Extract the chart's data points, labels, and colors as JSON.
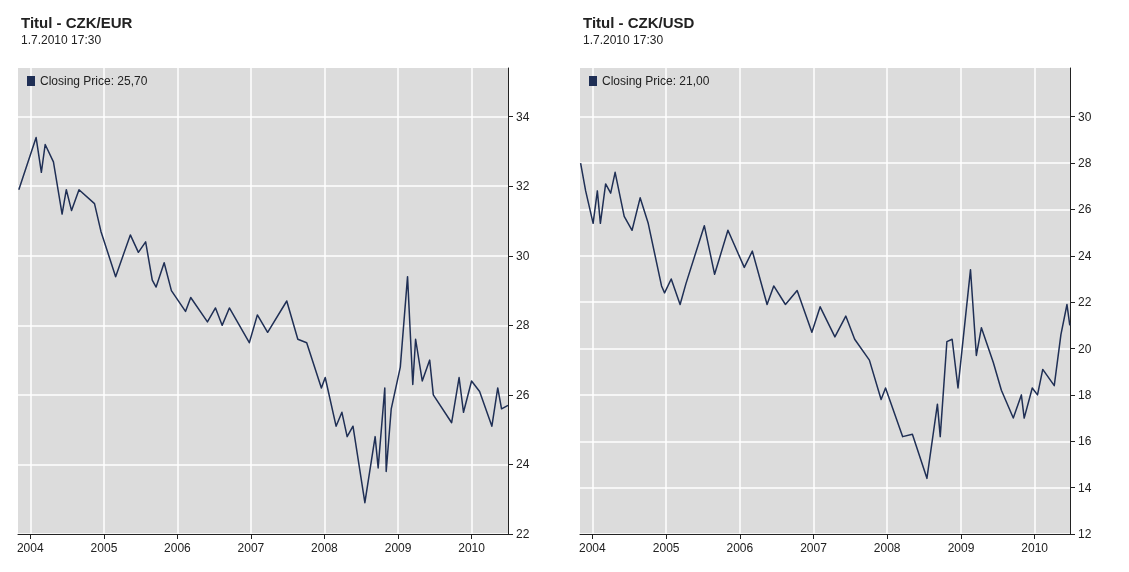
{
  "chart_data": [
    {
      "type": "line",
      "title": "Titul - CZK/EUR",
      "subtitle": "1.7.2010 17:30",
      "legend": "top left",
      "grid": true,
      "xlim": [
        "2003-11-01",
        "2010-07-01"
      ],
      "xticks": [
        "2004",
        "2005",
        "2006",
        "2007",
        "2008",
        "2009",
        "2010"
      ],
      "ylim": [
        22,
        35.4
      ],
      "yticks": [
        22,
        24,
        26,
        28,
        30,
        32,
        34
      ],
      "series": [
        {
          "name": "Closing Price: 25,70",
          "color": "#1f2f55",
          "x": [
            "2003-11-05",
            "2004-01-30",
            "2004-02-25",
            "2004-03-15",
            "2004-04-25",
            "2004-06-07",
            "2004-06-28",
            "2004-07-24",
            "2004-08-30",
            "2004-11-15",
            "2004-12-17",
            "2005-02-28",
            "2005-05-12",
            "2005-06-21",
            "2005-07-27",
            "2005-08-29",
            "2005-09-17",
            "2005-10-27",
            "2005-12-02",
            "2006-02-10",
            "2006-03-08",
            "2006-05-30",
            "2006-07-09",
            "2006-08-11",
            "2006-09-16",
            "2006-12-24",
            "2007-02-02",
            "2007-03-25",
            "2007-06-28",
            "2007-08-22",
            "2007-10-05",
            "2007-12-17",
            "2008-01-05",
            "2008-02-28",
            "2008-03-28",
            "2008-04-23",
            "2008-05-22",
            "2008-07-20",
            "2008-09-09",
            "2008-09-24",
            "2008-10-27",
            "2008-11-03",
            "2008-11-28",
            "2009-01-12",
            "2009-02-17",
            "2009-03-15",
            "2009-03-29",
            "2009-05-01",
            "2009-06-07",
            "2009-06-25",
            "2009-09-24",
            "2009-10-31",
            "2009-11-22",
            "2010-01-01",
            "2010-02-10",
            "2010-04-12",
            "2010-05-11",
            "2010-05-30",
            "2010-07-01"
          ],
          "values": [
            31.9,
            33.4,
            32.4,
            33.2,
            32.7,
            31.2,
            31.9,
            31.3,
            31.9,
            31.5,
            30.7,
            29.4,
            30.6,
            30.1,
            30.4,
            29.3,
            29.1,
            29.8,
            29.0,
            28.4,
            28.8,
            28.1,
            28.5,
            28.0,
            28.5,
            27.5,
            28.3,
            27.8,
            28.7,
            27.6,
            27.5,
            26.2,
            26.5,
            25.1,
            25.5,
            24.8,
            25.1,
            22.9,
            24.8,
            23.9,
            26.2,
            23.8,
            25.6,
            26.8,
            29.4,
            26.3,
            27.6,
            26.4,
            27.0,
            26.0,
            25.2,
            26.5,
            25.5,
            26.4,
            26.1,
            25.1,
            26.2,
            25.6,
            25.7
          ]
        }
      ]
    },
    {
      "type": "line",
      "title": "Titul - CZK/USD",
      "subtitle": "1.7.2010 17:30",
      "legend": "top left",
      "grid": true,
      "xlim": [
        "2003-11-01",
        "2010-06-25"
      ],
      "xticks": [
        "2004",
        "2005",
        "2006",
        "2007",
        "2008",
        "2009",
        "2010"
      ],
      "ylim": [
        12,
        32.1
      ],
      "yticks": [
        12,
        14,
        16,
        18,
        20,
        22,
        24,
        26,
        28,
        30
      ],
      "series": [
        {
          "name": "Closing Price: 21,00",
          "color": "#1f2f55",
          "x": [
            "2003-11-04",
            "2003-11-29",
            "2004-01-05",
            "2004-01-26",
            "2004-02-10",
            "2004-03-07",
            "2004-04-01",
            "2004-04-23",
            "2004-06-07",
            "2004-07-16",
            "2004-08-25",
            "2004-10-04",
            "2004-12-09",
            "2004-12-24",
            "2005-01-26",
            "2005-03-11",
            "2005-04-09",
            "2005-07-09",
            "2005-08-29",
            "2005-11-03",
            "2006-01-23",
            "2006-03-04",
            "2006-05-16",
            "2006-06-18",
            "2006-08-15",
            "2006-10-12",
            "2006-12-24",
            "2007-02-03",
            "2007-04-17",
            "2007-06-10",
            "2007-07-24",
            "2007-10-05",
            "2007-12-02",
            "2007-12-24",
            "2008-03-18",
            "2008-05-05",
            "2008-07-16",
            "2008-09-06",
            "2008-09-20",
            "2008-10-23",
            "2008-11-18",
            "2008-12-17",
            "2009-02-17",
            "2009-03-18",
            "2009-04-12",
            "2009-06-10",
            "2009-07-20",
            "2009-09-17",
            "2009-10-27",
            "2009-11-10",
            "2009-12-20",
            "2010-01-15",
            "2010-02-10",
            "2010-04-08",
            "2010-05-11",
            "2010-06-10",
            "2010-06-24"
          ],
          "values": [
            28.0,
            26.8,
            25.4,
            26.8,
            25.4,
            27.1,
            26.7,
            27.6,
            25.7,
            25.1,
            26.5,
            25.4,
            22.7,
            22.4,
            23.0,
            21.9,
            22.8,
            25.3,
            23.2,
            25.1,
            23.5,
            24.2,
            21.9,
            22.7,
            21.9,
            22.5,
            20.7,
            21.8,
            20.5,
            21.4,
            20.4,
            19.5,
            17.8,
            18.3,
            16.2,
            16.3,
            14.4,
            17.6,
            16.2,
            20.3,
            20.4,
            18.3,
            23.4,
            19.7,
            20.9,
            19.4,
            18.2,
            17.0,
            18.0,
            17.0,
            18.3,
            18.0,
            19.1,
            18.4,
            20.6,
            21.9,
            21.0
          ]
        }
      ]
    }
  ]
}
